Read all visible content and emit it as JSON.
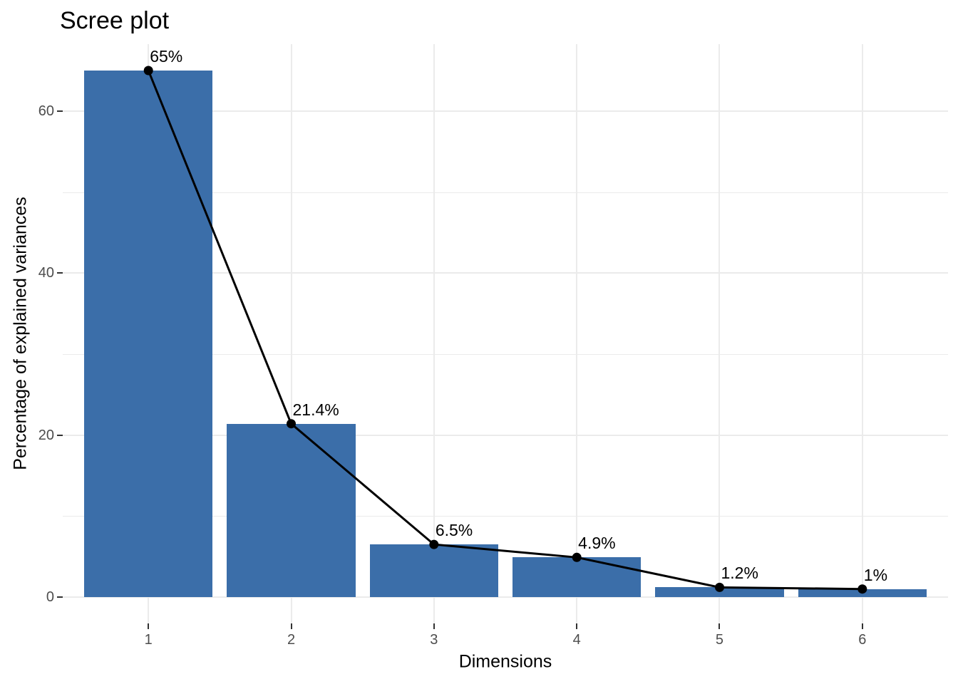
{
  "chart_data": {
    "type": "bar",
    "subtype": "scree-plot-with-line",
    "title": "Scree plot",
    "xlabel": "Dimensions",
    "ylabel": "Percentage of explained variances",
    "categories": [
      "1",
      "2",
      "3",
      "4",
      "5",
      "6"
    ],
    "values": [
      65,
      21.4,
      6.5,
      4.9,
      1.2,
      1
    ],
    "point_labels": [
      "65%",
      "21.4%",
      "6.5%",
      "4.9%",
      "1.2%",
      "1%"
    ],
    "y_ticks": [
      0,
      20,
      40,
      60
    ],
    "y_minor_breaks": [
      10,
      30,
      50
    ],
    "ylim": [
      -3.25,
      68.25
    ],
    "grid": true,
    "legend_position": "none",
    "colors": {
      "bar_fill": "#3b6ea9",
      "line": "#000000",
      "point": "#000000",
      "grid_major": "#ebebeb",
      "grid_minor": "#ebebeb",
      "tick_mark": "#333333",
      "tick_label": "#4d4d4d",
      "text": "#000000",
      "background": "#ffffff"
    }
  }
}
